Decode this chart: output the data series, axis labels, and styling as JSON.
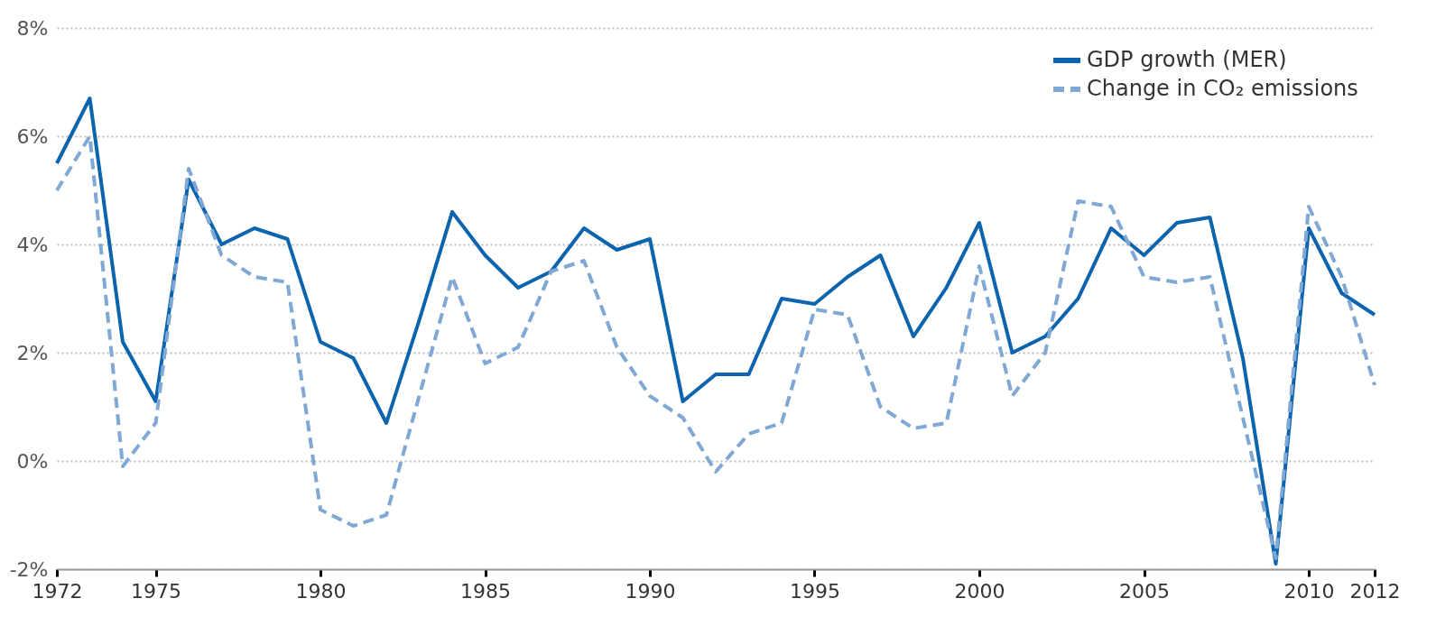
{
  "chart_data": {
    "type": "line",
    "x": [
      1972,
      1973,
      1974,
      1975,
      1976,
      1977,
      1978,
      1979,
      1980,
      1981,
      1982,
      1983,
      1984,
      1985,
      1986,
      1987,
      1988,
      1989,
      1990,
      1991,
      1992,
      1993,
      1994,
      1995,
      1996,
      1997,
      1998,
      1999,
      2000,
      2001,
      2002,
      2003,
      2004,
      2005,
      2006,
      2007,
      2008,
      2009,
      2010,
      2011,
      2012
    ],
    "series": [
      {
        "name": "GDP growth (MER)",
        "color": "#0b64ad",
        "line_style": "solid",
        "values": [
          5.5,
          6.7,
          2.2,
          1.1,
          5.2,
          4.0,
          4.3,
          4.1,
          2.2,
          1.9,
          0.7,
          2.6,
          4.6,
          3.8,
          3.2,
          3.5,
          4.3,
          3.9,
          4.1,
          1.1,
          1.6,
          1.6,
          3.0,
          2.9,
          3.4,
          3.8,
          2.3,
          3.2,
          4.4,
          2.0,
          2.3,
          3.0,
          4.3,
          3.8,
          4.4,
          4.5,
          1.9,
          -1.9,
          4.3,
          3.1,
          2.7
        ]
      },
      {
        "name": "Change in CO₂ emissions",
        "color": "#80a8d5",
        "line_style": "dashed",
        "values": [
          5.0,
          6.0,
          -0.1,
          0.7,
          5.4,
          3.8,
          3.4,
          3.3,
          -0.9,
          -1.2,
          -1.0,
          1.2,
          3.4,
          1.8,
          2.1,
          3.5,
          3.7,
          2.1,
          1.2,
          0.8,
          -0.2,
          0.5,
          0.7,
          2.8,
          2.7,
          1.0,
          0.6,
          0.7,
          3.6,
          1.2,
          2.0,
          4.8,
          4.7,
          3.4,
          3.3,
          3.4,
          0.8,
          -1.8,
          4.7,
          3.4,
          1.4
        ]
      }
    ],
    "xlim": [
      1972,
      2012
    ],
    "xticks": [
      1972,
      1975,
      1980,
      1985,
      1990,
      1995,
      2000,
      2005,
      2010,
      2012
    ],
    "ylim": [
      -2,
      8
    ],
    "yticks": [
      {
        "value": -2,
        "label": "-2%"
      },
      {
        "value": 0,
        "label": "0%"
      },
      {
        "value": 2,
        "label": "2%"
      },
      {
        "value": 4,
        "label": "4%"
      },
      {
        "value": 6,
        "label": "6%"
      },
      {
        "value": 8,
        "label": "8%"
      }
    ],
    "grid": "y",
    "legend": "top right"
  }
}
